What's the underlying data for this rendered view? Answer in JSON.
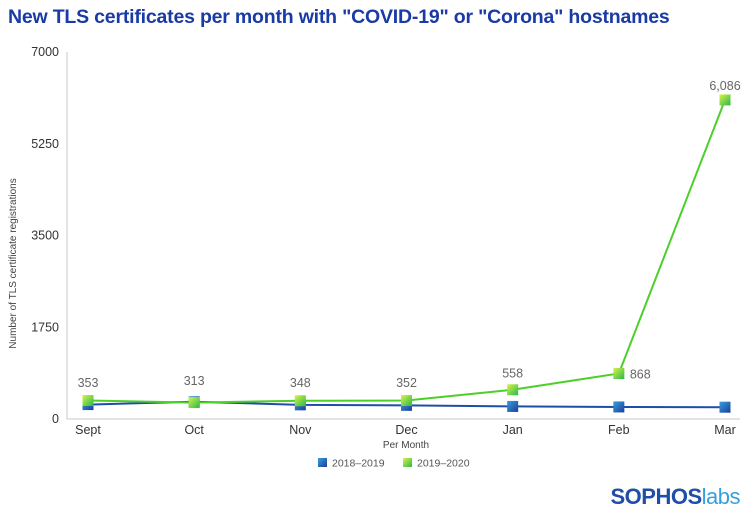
{
  "chart_data": {
    "type": "line",
    "title": "New TLS certificates per month with \"COVID-19\" or \"Corona\" hostnames",
    "xlabel": "Per Month",
    "ylabel": "Number of TLS certificate registrations",
    "categories": [
      "Sept",
      "Oct",
      "Nov",
      "Dec",
      "Jan",
      "Feb",
      "Mar"
    ],
    "yticks": [
      "0",
      "1750",
      "3500",
      "5250",
      "7000"
    ],
    "ylim": [
      0,
      7000
    ],
    "grid": false,
    "legend_position": "bottom",
    "series": [
      {
        "name": "2018–2019",
        "values": [
          275,
          330,
          270,
          260,
          240,
          230,
          225
        ],
        "color": "#1f4ea8",
        "labels": []
      },
      {
        "name": "2019–2020",
        "values": [
          353,
          313,
          348,
          352,
          558,
          868,
          6086
        ],
        "color": "#4ccf28",
        "labels": [
          "353",
          "313",
          "348",
          "352",
          "558",
          "868",
          "6,086"
        ]
      }
    ]
  },
  "logo": {
    "part1": "SOPHOS",
    "part2": "labs"
  }
}
